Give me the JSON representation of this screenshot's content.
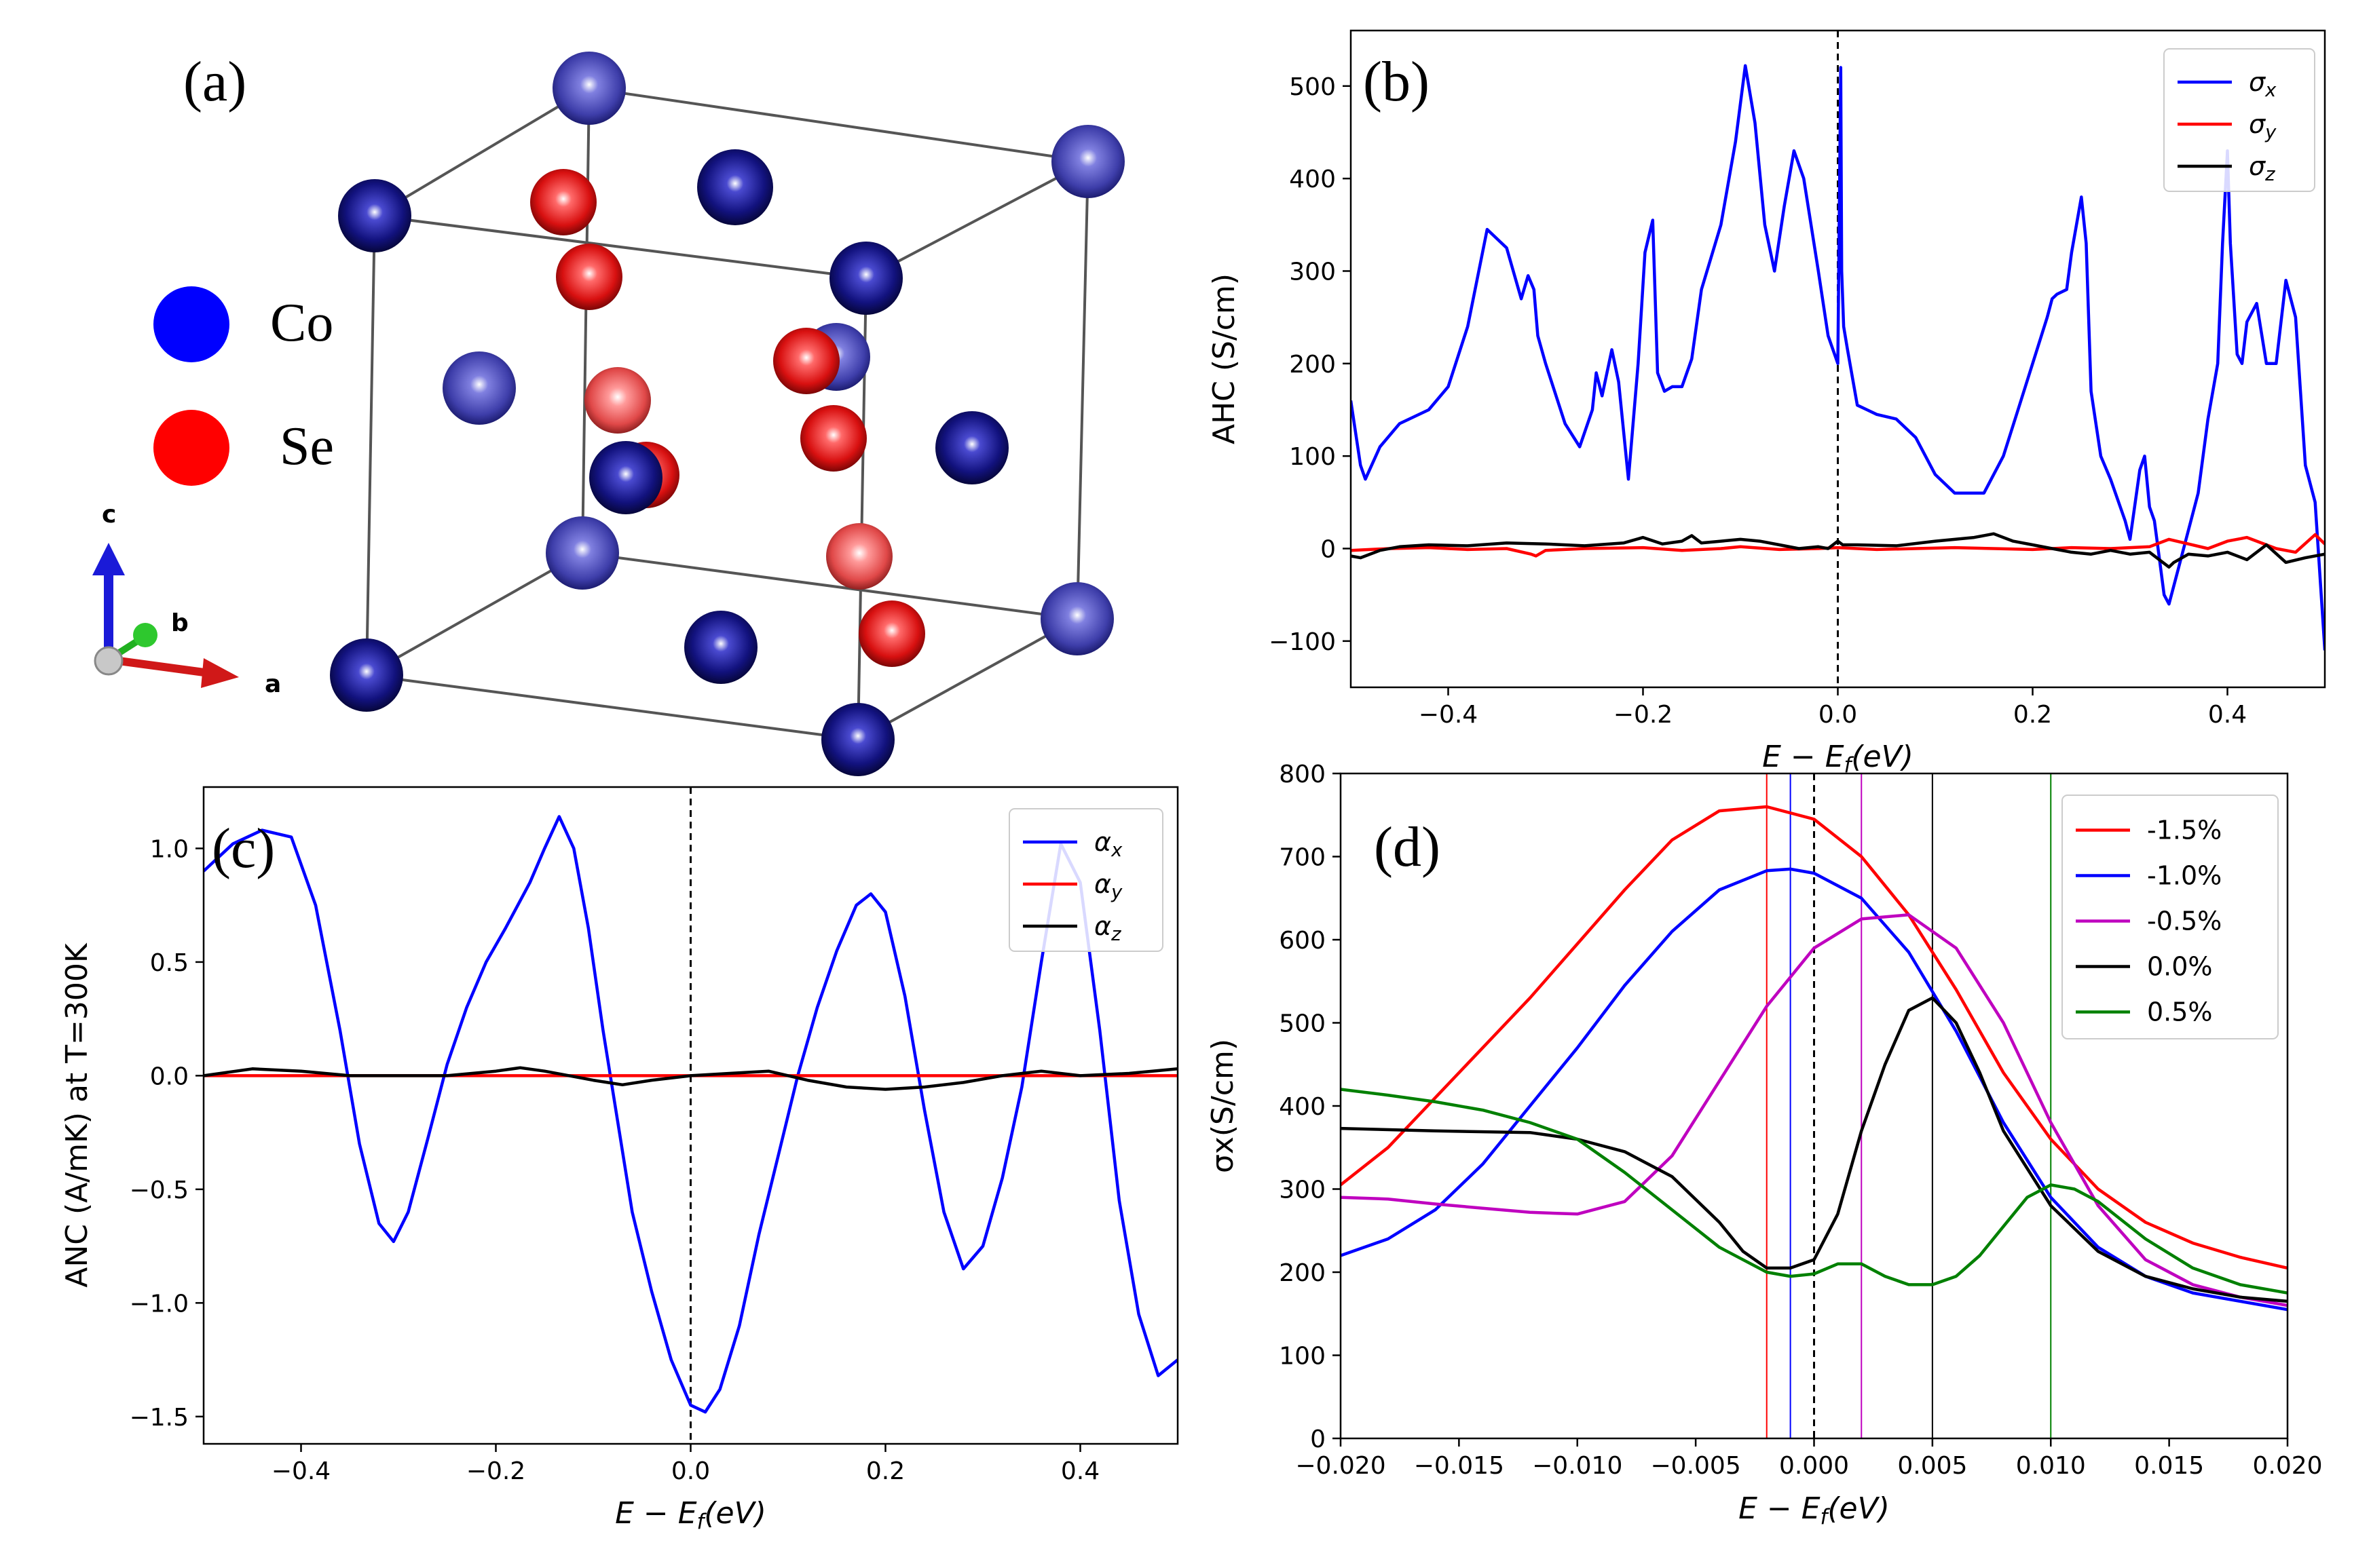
{
  "panel_a": {
    "label": "(a)",
    "legend": [
      {
        "name": "Co",
        "color": "#0000ff"
      },
      {
        "name": "Se",
        "color": "#ff0000"
      }
    ],
    "axes": {
      "c": "c",
      "b": "b",
      "a": "a"
    },
    "colors": {
      "co_dark": "#0d0d7a",
      "co_light": "#4848b8",
      "se": "#dd0f0f",
      "se_light": "#e84444",
      "edge": "#555555"
    }
  },
  "chart_data": [
    {
      "panel": "b",
      "label": "(b)",
      "type": "line",
      "title": "",
      "xlabel": "E − E",
      "xlabel_sub": "f",
      "xlabel_tail": "(eV)",
      "ylabel": "AHC (S/cm)",
      "xlim": [
        -0.5,
        0.5
      ],
      "ylim": [
        -150,
        560
      ],
      "xticks": [
        -0.4,
        -0.2,
        0.0,
        0.2,
        0.4
      ],
      "xtick_labels": [
        "−0.4",
        "−0.2",
        "0.0",
        "0.2",
        "0.4"
      ],
      "yticks": [
        -100,
        0,
        100,
        200,
        300,
        400,
        500
      ],
      "ytick_labels": [
        "−100",
        "0",
        "100",
        "200",
        "300",
        "400",
        "500"
      ],
      "vline_x": 0.0,
      "legend_placement": "top-right",
      "series": [
        {
          "name": "σx",
          "sym": "σ",
          "sub": "x",
          "color": "#0000ff",
          "x": [
            -0.5,
            -0.49,
            -0.485,
            -0.47,
            -0.45,
            -0.42,
            -0.4,
            -0.38,
            -0.36,
            -0.34,
            -0.325,
            -0.318,
            -0.312,
            -0.308,
            -0.3,
            -0.28,
            -0.265,
            -0.252,
            -0.248,
            -0.242,
            -0.232,
            -0.225,
            -0.215,
            -0.205,
            -0.198,
            -0.19,
            -0.185,
            -0.178,
            -0.17,
            -0.16,
            -0.15,
            -0.14,
            -0.12,
            -0.105,
            -0.095,
            -0.085,
            -0.075,
            -0.065,
            -0.055,
            -0.045,
            -0.035,
            -0.02,
            -0.01,
            0.0,
            0.003,
            0.004,
            0.006,
            0.01,
            0.02,
            0.03,
            0.04,
            0.06,
            0.08,
            0.1,
            0.12,
            0.15,
            0.17,
            0.185,
            0.2,
            0.215,
            0.22,
            0.225,
            0.235,
            0.24,
            0.25,
            0.255,
            0.26,
            0.27,
            0.28,
            0.295,
            0.3,
            0.31,
            0.315,
            0.32,
            0.325,
            0.33,
            0.335,
            0.34,
            0.35,
            0.36,
            0.37,
            0.38,
            0.39,
            0.395,
            0.4,
            0.403,
            0.41,
            0.415,
            0.42,
            0.43,
            0.44,
            0.45,
            0.46,
            0.465,
            0.47,
            0.48,
            0.49,
            0.5
          ],
          "y": [
            160,
            90,
            75,
            110,
            135,
            150,
            175,
            240,
            345,
            325,
            270,
            295,
            280,
            230,
            200,
            135,
            110,
            150,
            190,
            165,
            215,
            180,
            75,
            200,
            320,
            355,
            190,
            170,
            175,
            175,
            205,
            280,
            350,
            440,
            522,
            460,
            350,
            300,
            370,
            430,
            400,
            300,
            230,
            200,
            520,
            300,
            240,
            215,
            155,
            150,
            145,
            140,
            120,
            80,
            60,
            60,
            100,
            150,
            200,
            250,
            270,
            275,
            280,
            320,
            380,
            330,
            170,
            100,
            75,
            30,
            10,
            85,
            100,
            45,
            30,
            -10,
            -50,
            -60,
            -20,
            20,
            60,
            140,
            200,
            330,
            430,
            330,
            210,
            200,
            245,
            265,
            200,
            200,
            290,
            270,
            250,
            90,
            50,
            -110
          ]
        },
        {
          "name": "σy",
          "sym": "σ",
          "sub": "y",
          "color": "#ff0000",
          "x": [
            -0.5,
            -0.46,
            -0.42,
            -0.38,
            -0.34,
            -0.315,
            -0.31,
            -0.3,
            -0.26,
            -0.2,
            -0.16,
            -0.12,
            -0.1,
            -0.06,
            -0.02,
            0.0,
            0.04,
            0.08,
            0.12,
            0.16,
            0.2,
            0.24,
            0.28,
            0.32,
            0.34,
            0.36,
            0.38,
            0.4,
            0.42,
            0.45,
            0.47,
            0.49,
            0.5
          ],
          "y": [
            -2,
            0,
            1,
            -1,
            0,
            -6,
            -8,
            -2,
            0,
            1,
            -2,
            0,
            2,
            -1,
            0,
            1,
            -1,
            0,
            1,
            0,
            -1,
            1,
            0,
            2,
            10,
            5,
            0,
            8,
            12,
            0,
            -4,
            15,
            5
          ]
        },
        {
          "name": "σz",
          "sym": "σ",
          "sub": "z",
          "color": "#000000",
          "x": [
            -0.5,
            -0.49,
            -0.47,
            -0.45,
            -0.42,
            -0.38,
            -0.34,
            -0.3,
            -0.26,
            -0.22,
            -0.2,
            -0.18,
            -0.16,
            -0.15,
            -0.14,
            -0.12,
            -0.1,
            -0.08,
            -0.06,
            -0.04,
            -0.02,
            -0.01,
            0.0,
            0.005,
            0.02,
            0.06,
            0.1,
            0.14,
            0.16,
            0.18,
            0.2,
            0.22,
            0.24,
            0.26,
            0.28,
            0.3,
            0.32,
            0.33,
            0.34,
            0.345,
            0.36,
            0.38,
            0.4,
            0.42,
            0.44,
            0.46,
            0.48,
            0.5
          ],
          "y": [
            -8,
            -10,
            -2,
            2,
            4,
            3,
            6,
            5,
            3,
            6,
            12,
            5,
            8,
            14,
            6,
            8,
            10,
            8,
            4,
            0,
            2,
            0,
            8,
            4,
            4,
            3,
            8,
            12,
            16,
            8,
            4,
            0,
            -4,
            -6,
            -2,
            -6,
            -4,
            -12,
            -20,
            -15,
            -6,
            -8,
            -4,
            -12,
            4,
            -15,
            -10,
            -6
          ]
        }
      ]
    },
    {
      "panel": "c",
      "label": "(c)",
      "type": "line",
      "title": "",
      "xlabel": "E − E",
      "xlabel_sub": "f",
      "xlabel_tail": "(eV)",
      "ylabel": "ANC (A/mK) at T=300K",
      "xlim": [
        -0.5,
        0.5
      ],
      "ylim": [
        -1.62,
        1.27
      ],
      "xticks": [
        -0.4,
        -0.2,
        0.0,
        0.2,
        0.4
      ],
      "xtick_labels": [
        "−0.4",
        "−0.2",
        "0.0",
        "0.2",
        "0.4"
      ],
      "yticks": [
        -1.5,
        -1.0,
        -0.5,
        0.0,
        0.5,
        1.0
      ],
      "ytick_labels": [
        "−1.5",
        "−1.0",
        "−0.5",
        "0.0",
        "0.5",
        "1.0"
      ],
      "vline_x": 0.0,
      "legend_placement": "top-right",
      "series": [
        {
          "name": "αx",
          "sym": "α",
          "sub": "x",
          "color": "#0000ff",
          "x": [
            -0.5,
            -0.47,
            -0.44,
            -0.41,
            -0.385,
            -0.36,
            -0.34,
            -0.32,
            -0.305,
            -0.29,
            -0.27,
            -0.25,
            -0.23,
            -0.21,
            -0.19,
            -0.165,
            -0.15,
            -0.135,
            -0.12,
            -0.105,
            -0.09,
            -0.075,
            -0.06,
            -0.04,
            -0.02,
            0.0,
            0.015,
            0.03,
            0.05,
            0.07,
            0.09,
            0.11,
            0.13,
            0.15,
            0.17,
            0.185,
            0.2,
            0.22,
            0.24,
            0.26,
            0.28,
            0.3,
            0.32,
            0.34,
            0.36,
            0.38,
            0.4,
            0.42,
            0.44,
            0.46,
            0.48,
            0.5
          ],
          "y": [
            0.9,
            1.02,
            1.08,
            1.05,
            0.75,
            0.2,
            -0.3,
            -0.65,
            -0.73,
            -0.6,
            -0.28,
            0.05,
            0.3,
            0.5,
            0.65,
            0.85,
            1.0,
            1.14,
            1.0,
            0.65,
            0.2,
            -0.2,
            -0.6,
            -0.95,
            -1.25,
            -1.45,
            -1.48,
            -1.38,
            -1.1,
            -0.7,
            -0.35,
            0.0,
            0.3,
            0.55,
            0.75,
            0.8,
            0.72,
            0.35,
            -0.15,
            -0.6,
            -0.85,
            -0.75,
            -0.45,
            -0.05,
            0.5,
            1.02,
            0.85,
            0.2,
            -0.55,
            -1.05,
            -1.32,
            -1.25
          ]
        },
        {
          "name": "αy",
          "sym": "α",
          "sub": "y",
          "color": "#ff0000",
          "x": [
            -0.5,
            -0.25,
            0.0,
            0.25,
            0.5
          ],
          "y": [
            0.0,
            0.0,
            0.0,
            0.0,
            0.0
          ]
        },
        {
          "name": "αz",
          "sym": "α",
          "sub": "z",
          "color": "#000000",
          "x": [
            -0.5,
            -0.45,
            -0.4,
            -0.35,
            -0.3,
            -0.25,
            -0.2,
            -0.175,
            -0.15,
            -0.1,
            -0.07,
            -0.04,
            0.0,
            0.04,
            0.08,
            0.12,
            0.16,
            0.2,
            0.24,
            0.28,
            0.32,
            0.36,
            0.4,
            0.45,
            0.5
          ],
          "y": [
            0.0,
            0.03,
            0.02,
            0.0,
            0.0,
            0.0,
            0.02,
            0.035,
            0.02,
            -0.02,
            -0.04,
            -0.02,
            0.0,
            0.01,
            0.02,
            -0.02,
            -0.05,
            -0.06,
            -0.05,
            -0.03,
            0.0,
            0.02,
            0.0,
            0.01,
            0.03
          ]
        }
      ]
    },
    {
      "panel": "d",
      "label": "(d)",
      "type": "line",
      "title": "",
      "xlabel": "E − E",
      "xlabel_sub": "f",
      "xlabel_tail": "(eV)",
      "ylabel": "σx(S/cm)",
      "xlim": [
        -0.02,
        0.02
      ],
      "ylim": [
        0,
        800
      ],
      "xticks": [
        -0.02,
        -0.015,
        -0.01,
        -0.005,
        0.0,
        0.005,
        0.01,
        0.015,
        0.02
      ],
      "xtick_labels": [
        "−0.020",
        "−0.015",
        "−0.010",
        "−0.005",
        "0.000",
        "0.005",
        "0.010",
        "0.015",
        "0.020"
      ],
      "yticks": [
        0,
        100,
        200,
        300,
        400,
        500,
        600,
        700,
        800
      ],
      "ytick_labels": [
        "0",
        "100",
        "200",
        "300",
        "400",
        "500",
        "600",
        "700",
        "800"
      ],
      "vline_x": 0.0,
      "legend_placement": "top-right",
      "series": [
        {
          "name": "-1.5%",
          "color": "#ff0000",
          "marker_x": -0.002,
          "x": [
            -0.02,
            -0.018,
            -0.016,
            -0.014,
            -0.012,
            -0.01,
            -0.008,
            -0.006,
            -0.004,
            -0.002,
            0.0,
            0.002,
            0.004,
            0.006,
            0.008,
            0.01,
            0.012,
            0.014,
            0.016,
            0.018,
            0.02
          ],
          "y": [
            305,
            350,
            410,
            470,
            530,
            595,
            660,
            720,
            755,
            760,
            745,
            700,
            630,
            540,
            440,
            360,
            300,
            260,
            235,
            218,
            205
          ]
        },
        {
          "name": "-1.0%",
          "color": "#0000ff",
          "marker_x": -0.001,
          "x": [
            -0.02,
            -0.018,
            -0.016,
            -0.014,
            -0.012,
            -0.01,
            -0.008,
            -0.006,
            -0.004,
            -0.002,
            -0.001,
            0.0,
            0.002,
            0.004,
            0.006,
            0.008,
            0.01,
            0.012,
            0.014,
            0.016,
            0.018,
            0.02
          ],
          "y": [
            220,
            240,
            275,
            330,
            400,
            470,
            545,
            610,
            660,
            683,
            685,
            680,
            650,
            585,
            490,
            380,
            290,
            230,
            195,
            175,
            165,
            155
          ]
        },
        {
          "name": "-0.5%",
          "color": "#bf00bf",
          "marker_x": 0.002,
          "x": [
            -0.02,
            -0.018,
            -0.016,
            -0.014,
            -0.012,
            -0.01,
            -0.008,
            -0.006,
            -0.004,
            -0.002,
            0.0,
            0.002,
            0.004,
            0.006,
            0.008,
            0.01,
            0.012,
            0.014,
            0.016,
            0.018,
            0.02
          ],
          "y": [
            290,
            288,
            282,
            277,
            272,
            270,
            285,
            340,
            430,
            520,
            590,
            625,
            630,
            590,
            500,
            380,
            280,
            215,
            185,
            170,
            160
          ]
        },
        {
          "name": "0.0%",
          "color": "#000000",
          "marker_x": 0.005,
          "x": [
            -0.02,
            -0.016,
            -0.012,
            -0.01,
            -0.008,
            -0.006,
            -0.004,
            -0.003,
            -0.002,
            -0.001,
            0.0,
            0.001,
            0.002,
            0.003,
            0.004,
            0.005,
            0.006,
            0.007,
            0.008,
            0.01,
            0.012,
            0.014,
            0.016,
            0.018,
            0.02
          ],
          "y": [
            373,
            370,
            368,
            360,
            345,
            315,
            260,
            225,
            205,
            205,
            215,
            270,
            370,
            450,
            515,
            530,
            500,
            440,
            370,
            280,
            225,
            195,
            180,
            170,
            165
          ]
        },
        {
          "name": "0.5%",
          "color": "#008000",
          "marker_x": 0.01,
          "x": [
            -0.02,
            -0.018,
            -0.016,
            -0.014,
            -0.012,
            -0.01,
            -0.008,
            -0.006,
            -0.004,
            -0.002,
            -0.001,
            0.0,
            0.001,
            0.002,
            0.003,
            0.004,
            0.005,
            0.006,
            0.007,
            0.008,
            0.009,
            0.01,
            0.011,
            0.012,
            0.014,
            0.016,
            0.018,
            0.02
          ],
          "y": [
            420,
            413,
            405,
            395,
            380,
            360,
            320,
            275,
            230,
            200,
            195,
            198,
            210,
            210,
            195,
            185,
            185,
            195,
            220,
            255,
            290,
            305,
            300,
            285,
            240,
            205,
            185,
            175
          ]
        }
      ]
    }
  ]
}
